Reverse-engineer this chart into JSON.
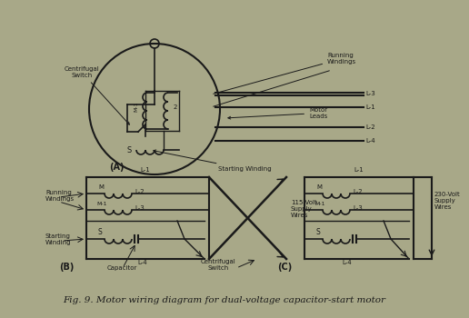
{
  "bg_color": "#a8a888",
  "line_color": "#1a1a1a",
  "title": "Fig. 9. Motor wiring diagram for dual-voltage capacitor-start motor",
  "title_fontsize": 7.5,
  "label_A": "(A)",
  "label_B": "(B)",
  "label_C": "(C)",
  "centrifugal_switch": "Centrifugal\nSwitch",
  "running_windings": "Running\nWindings",
  "motor_leads": "Motor\nLeads",
  "starting_winding_A": "Starting Winding",
  "running_windings_B": "Running\nWindings",
  "starting_winding_B": "Starting\nWinding",
  "capacitor": "Capacitor",
  "centrifugal_switch_B": "Centrifugal\nSwitch",
  "supply_115": "115-Volt\nSupply\nWires",
  "supply_230": "230-Volt\nSupply\nWires"
}
